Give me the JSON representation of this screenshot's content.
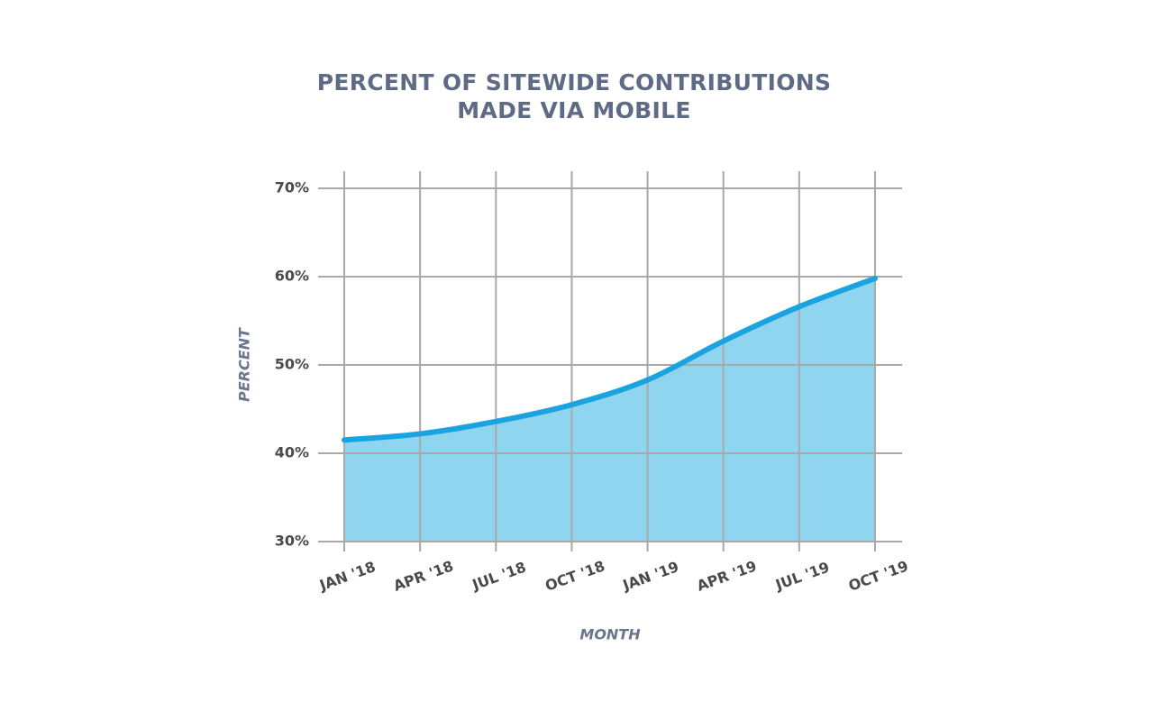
{
  "chart_data": {
    "type": "area",
    "title": "PERCENT OF SITEWIDE CONTRIBUTIONS MADE VIA MOBILE",
    "x_label": "MONTH",
    "y_label": "PERCENT",
    "categories": [
      "JAN '18",
      "APR '18",
      "JUL '18",
      "OCT '18",
      "JAN '19",
      "APR '19",
      "JUL '19",
      "OCT '19"
    ],
    "values": [
      41.5,
      42.2,
      43.6,
      45.5,
      48.3,
      52.7,
      56.6,
      59.8
    ],
    "color": "#1aa3e0",
    "fill_color": "#90d5f0",
    "ylim": [
      30,
      70
    ],
    "yticks": [
      {
        "value": 30,
        "label": "30%"
      },
      {
        "value": 40,
        "label": "40%"
      },
      {
        "value": 50,
        "label": "50%"
      },
      {
        "value": 60,
        "label": "60%"
      },
      {
        "value": 70,
        "label": "70%"
      }
    ],
    "grid": true
  }
}
